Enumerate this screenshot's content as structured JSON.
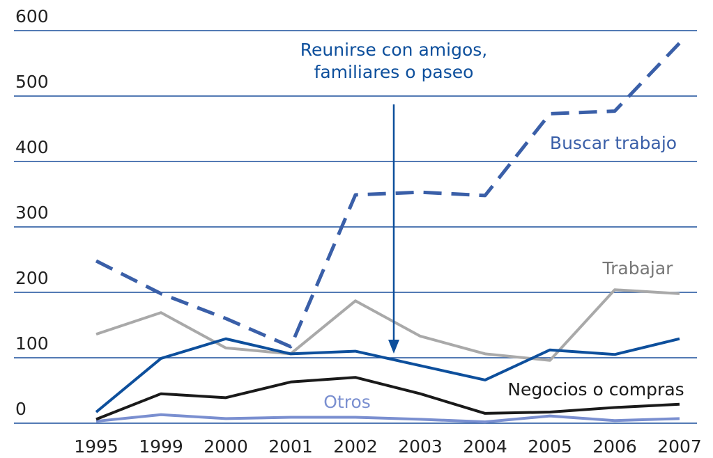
{
  "chart_data": {
    "type": "line",
    "categories": [
      "1995",
      "1999",
      "2000",
      "2001",
      "2002",
      "2003",
      "2004",
      "2005",
      "2006",
      "2007"
    ],
    "ylim": [
      0,
      600
    ],
    "yticks": [
      0,
      100,
      200,
      300,
      400,
      500,
      600
    ],
    "grid": true,
    "series": [
      {
        "name": "Buscar trabajo",
        "color": "#3a5fa8",
        "dashed": true,
        "values": [
          248,
          198,
          160,
          117,
          349,
          353,
          348,
          473,
          477,
          581
        ]
      },
      {
        "name": "Trabajar",
        "color": "#a9a9a9",
        "values": [
          136,
          169,
          115,
          106,
          187,
          133,
          106,
          96,
          204,
          198
        ]
      },
      {
        "name": "Reunirse con amigos, familiares o paseo",
        "color": "#0d4f9c",
        "values": [
          17,
          99,
          129,
          106,
          110,
          88,
          66,
          112,
          105,
          129
        ]
      },
      {
        "name": "Negocios o compras",
        "color": "#1a1a1a",
        "values": [
          6,
          45,
          39,
          63,
          70,
          45,
          15,
          17,
          24,
          29
        ]
      },
      {
        "name": "Otros",
        "color": "#7a8fd0",
        "values": [
          3,
          13,
          7,
          9,
          9,
          6,
          2,
          11,
          4,
          7
        ]
      }
    ]
  }
}
